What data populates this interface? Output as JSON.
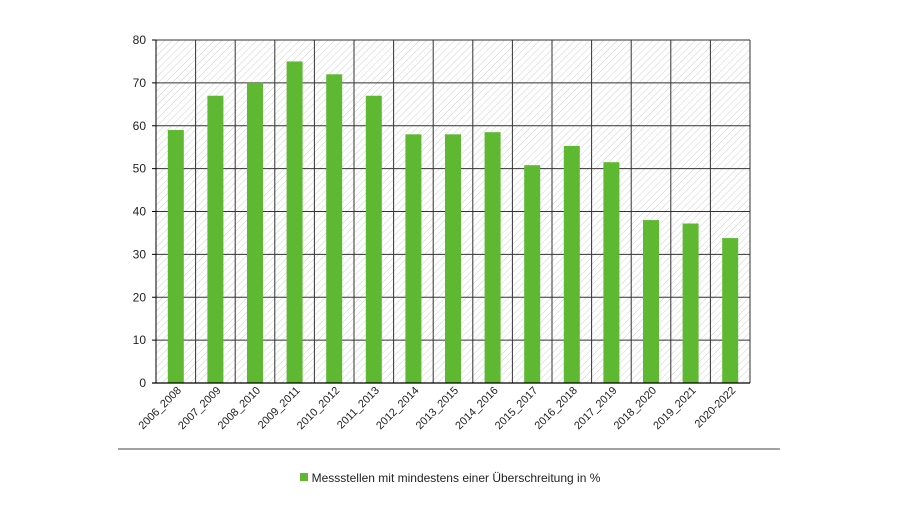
{
  "chart_data": {
    "type": "bar",
    "categories": [
      "2006_2008",
      "2007_2009",
      "2008_2010",
      "2009_2011",
      "2010_2012",
      "2011_2013",
      "2012_2014",
      "2013_2015",
      "2014_2016",
      "2015_2017",
      "2016_2018",
      "2017_2019",
      "2018_2020",
      "2019_2021",
      "2020-2022"
    ],
    "series": [
      {
        "name": "Messstellen mit mindestens einer Überschreitung in %",
        "values": [
          59,
          67,
          70,
          75,
          72,
          67,
          58,
          58,
          58.5,
          50.8,
          55.3,
          51.5,
          38,
          37.2,
          33.8
        ]
      }
    ],
    "ylim": [
      0,
      80
    ],
    "yticks": [
      0,
      10,
      20,
      30,
      40,
      50,
      60,
      70,
      80
    ],
    "grid": true,
    "legend_position": "bottom-center",
    "colors": {
      "bar": "#5fb832",
      "grid": "#333333",
      "hatch": "#c8c8c8"
    }
  }
}
